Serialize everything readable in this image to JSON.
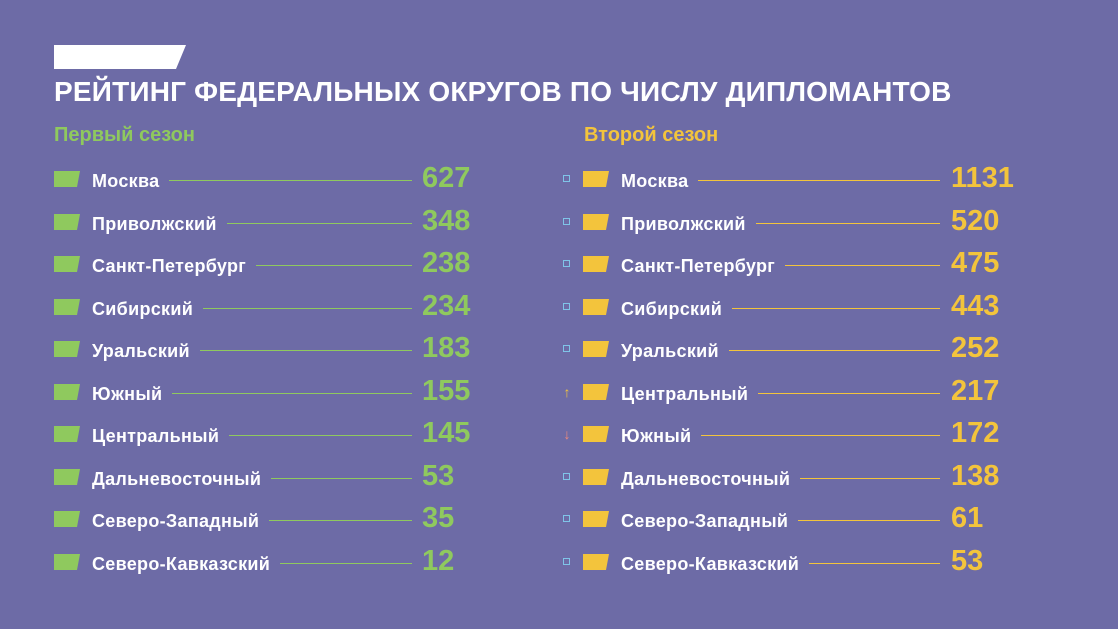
{
  "title": "РЕЙТИНГ ФЕДЕРАЛЬНЫХ ОКРУГОВ ПО ЧИСЛУ ДИПЛОМАНТОВ",
  "colors": {
    "background": "#6d6ba6",
    "first_season": "#8fc95e",
    "second_season": "#f3c43c",
    "same_marker": "#7fc4e8",
    "down_arrow": "#f08a7a",
    "title": "#ffffff"
  },
  "chart_data": [
    {
      "type": "table",
      "title": "Первый сезон",
      "categories": [
        "Москва",
        "Приволжский",
        "Санкт-Петербург",
        "Сибирский",
        "Уральский",
        "Южный",
        "Центральный",
        "Дальневосточный",
        "Северо-Западный",
        "Северо-Кавказский"
      ],
      "values": [
        627,
        348,
        238,
        234,
        183,
        155,
        145,
        53,
        35,
        12
      ]
    },
    {
      "type": "table",
      "title": "Второй сезон",
      "categories": [
        "Москва",
        "Приволжский",
        "Санкт-Петербург",
        "Сибирский",
        "Уральский",
        "Центральный",
        "Южный",
        "Дальневосточный",
        "Северо-Западный",
        "Северо-Кавказский"
      ],
      "values": [
        1131,
        520,
        475,
        443,
        252,
        217,
        172,
        138,
        61,
        53
      ],
      "rank_change": [
        "same",
        "same",
        "same",
        "same",
        "same",
        "up",
        "down",
        "same",
        "same",
        "same"
      ],
      "change_icons": {
        "up": "↑",
        "down": "↓",
        "same": ""
      }
    }
  ]
}
